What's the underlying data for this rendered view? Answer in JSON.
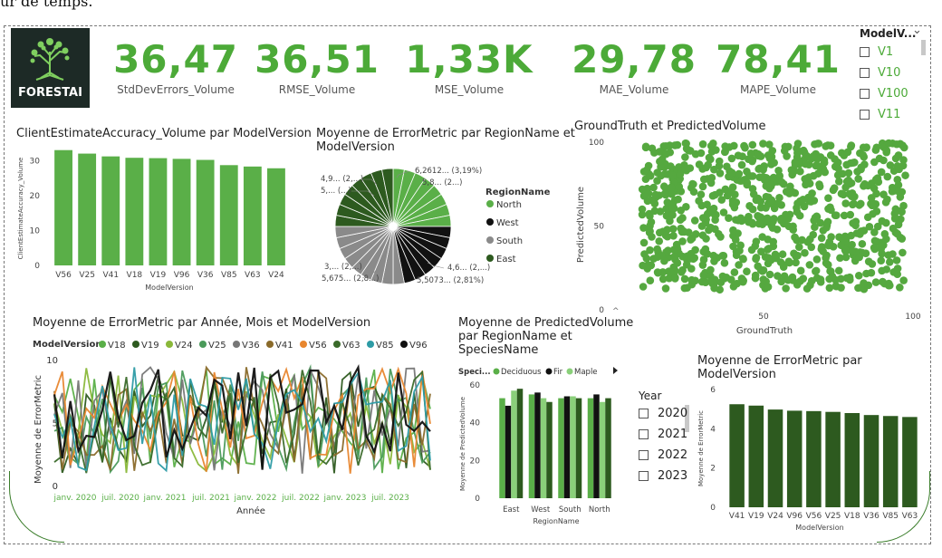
{
  "top_text": "ur de temps.",
  "logo": {
    "brand": "FORESTAI"
  },
  "kpis": [
    {
      "value": "36,47",
      "label": "StdDevErrors_Volume"
    },
    {
      "value": "36,51",
      "label": "RMSE_Volume"
    },
    {
      "value": "1,33K",
      "label": "MSE_Volume"
    },
    {
      "value": "29,78",
      "label": "MAE_Volume"
    },
    {
      "value": "78,41",
      "label": "MAPE_Volume"
    }
  ],
  "model_slicer": {
    "header": "ModelV...",
    "items": [
      "V1",
      "V10",
      "V100",
      "V11"
    ]
  },
  "year_slicer": {
    "header": "Year",
    "items": [
      "2020",
      "2021",
      "2022",
      "2023"
    ]
  },
  "colors": {
    "green": "#5aaf48",
    "dark_green": "#2d5a1f",
    "black": "#111111",
    "orange": "#e8862e",
    "teal": "#2d9ba5",
    "gray": "#8a8a8a",
    "pale_green": "#8ad07a"
  },
  "charts": {
    "accuracy": {
      "title": "ClientEstimateAccuracy_Volume par ModelVersion",
      "ylabel": "ClientEstimateAccuracy_Volume",
      "xlabel": "ModelVersion"
    },
    "pie": {
      "title_line1": "Moyenne de ErrorMetric par RegionName et",
      "title_line2": "ModelVersion",
      "labels": [
        "6,2612... (3,19%)",
        "5,8... (2...)",
        "4,9... (2,...)",
        "5,... (...)",
        "3,... (2,...)",
        "5,675... (2,8...)",
        "4,6... (2,...)",
        "5,5073... (2,81%)"
      ]
    },
    "scatter": {
      "title": "GroundTruth et PredictedVolume",
      "xlabel": "GroundTruth",
      "ylabel": "PredictedVolume"
    },
    "line": {
      "title": "Moyenne de ErrorMetric par Année, Mois et ModelVersion",
      "legend_title": "ModelVersion",
      "xlabel": "Année",
      "ylabel": "Moyenne de ErrorMetric"
    },
    "grouped": {
      "title_line1": "Moyenne de PredictedVolume",
      "title_line2": "par RegionName et",
      "title_line3": "SpeciesName",
      "legend_title": "Speci...",
      "xlabel": "RegionName",
      "ylabel": "Moyenne de PredictedVolume"
    },
    "errbar": {
      "title_line1": "Moyenne de ErrorMetric par",
      "title_line2": "ModelVersion",
      "xlabel": "ModelVersion",
      "ylabel": "Moyenne de ErrorMetric"
    }
  },
  "chart_data": [
    {
      "type": "bar",
      "title": "ClientEstimateAccuracy_Volume par ModelVersion",
      "xlabel": "ModelVersion",
      "ylabel": "ClientEstimateAccuracy_Volume",
      "categories": [
        "V56",
        "V25",
        "V41",
        "V18",
        "V19",
        "V96",
        "V36",
        "V85",
        "V63",
        "V24"
      ],
      "values": [
        33,
        32,
        31.2,
        30.8,
        30.7,
        30.5,
        30.2,
        28.7,
        28.3,
        27.8
      ],
      "ylim": [
        0,
        35
      ],
      "yticks": [
        0,
        10,
        20,
        30
      ]
    },
    {
      "type": "pie",
      "title": "Moyenne de ErrorMetric par RegionName et ModelVersion",
      "legend_title": "RegionName",
      "legend": [
        {
          "name": "North",
          "color": "#5aaf48"
        },
        {
          "name": "West",
          "color": "#111111"
        },
        {
          "name": "South",
          "color": "#8a8a8a"
        },
        {
          "name": "East",
          "color": "#2d5a1f"
        }
      ]
    },
    {
      "type": "scatter",
      "title": "GroundTruth et PredictedVolume",
      "xlabel": "GroundTruth",
      "ylabel": "PredictedVolume",
      "xlim": [
        0,
        100
      ],
      "ylim": [
        0,
        100
      ],
      "xticks": [
        50,
        100
      ],
      "yticks": [
        0,
        50,
        100
      ]
    },
    {
      "type": "line",
      "title": "Moyenne de ErrorMetric par Année, Mois et ModelVersion",
      "xlabel": "Année",
      "ylabel": "Moyenne de ErrorMetric",
      "xticks": [
        "janv. 2020",
        "juil. 2020",
        "janv. 2021",
        "juil. 2021",
        "janv. 2022",
        "juil. 2022",
        "janv. 2023",
        "juil. 2023"
      ],
      "ylim": [
        0,
        10
      ],
      "yticks": [
        0,
        5,
        10
      ],
      "series": [
        {
          "name": "V18",
          "color": "#5aaf48"
        },
        {
          "name": "V19",
          "color": "#2d5a1f"
        },
        {
          "name": "V24",
          "color": "#8ab83a"
        },
        {
          "name": "V25",
          "color": "#4a9a5a"
        },
        {
          "name": "V36",
          "color": "#777777"
        },
        {
          "name": "V41",
          "color": "#8a6a2a"
        },
        {
          "name": "V56",
          "color": "#e8862e"
        },
        {
          "name": "V63",
          "color": "#3a6a2a"
        },
        {
          "name": "V85",
          "color": "#2d9ba5"
        },
        {
          "name": "V96",
          "color": "#111111"
        }
      ]
    },
    {
      "type": "bar",
      "title": "Moyenne de PredictedVolume par RegionName et SpeciesName",
      "xlabel": "RegionName",
      "ylabel": "Moyenne de PredictedVolume",
      "categories": [
        "East",
        "West",
        "South",
        "North"
      ],
      "ylim": [
        0,
        60
      ],
      "yticks": [
        0,
        20,
        40,
        60
      ],
      "series": [
        {
          "name": "Deciduous",
          "color": "#5aaf48",
          "values": [
            53,
            55,
            53,
            53
          ]
        },
        {
          "name": "Fir",
          "color": "#111111",
          "values": [
            49,
            56,
            54,
            55
          ]
        },
        {
          "name": "Maple",
          "color": "#8ad07a",
          "values": [
            57,
            53,
            54,
            51
          ]
        },
        {
          "name": "",
          "color": "#2d5a1f",
          "values": [
            58,
            51,
            53,
            53
          ]
        }
      ]
    },
    {
      "type": "bar",
      "title": "Moyenne de ErrorMetric par ModelVersion",
      "xlabel": "ModelVersion",
      "ylabel": "Moyenne de ErrorMetric",
      "categories": [
        "V41",
        "V19",
        "V24",
        "V96",
        "V56",
        "V25",
        "V18",
        "V36",
        "V85",
        "V63"
      ],
      "values": [
        5.25,
        5.18,
        4.98,
        4.92,
        4.9,
        4.86,
        4.8,
        4.7,
        4.65,
        4.6
      ],
      "ylim": [
        0,
        6
      ],
      "yticks": [
        0,
        2,
        4,
        6
      ]
    }
  ]
}
